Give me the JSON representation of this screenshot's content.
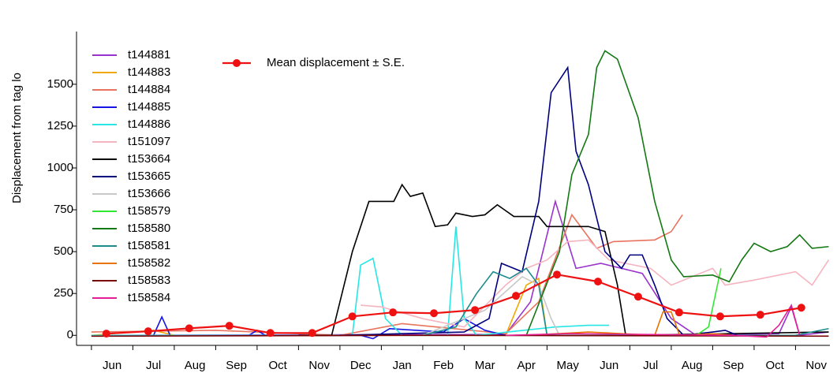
{
  "chart_data": {
    "type": "line",
    "y_label": "Displacement from tag lo",
    "categories": [
      "Jun",
      "Jul",
      "Aug",
      "Sep",
      "Oct",
      "Nov",
      "Dec",
      "Jan",
      "Feb",
      "Mar",
      "Apr",
      "May",
      "Jun",
      "Jul",
      "Aug",
      "Sep",
      "Oct",
      "Nov"
    ],
    "xlim": [
      -0.36,
      17.83
    ],
    "xticks": [
      0,
      1,
      2,
      3,
      4,
      5,
      6,
      7,
      8,
      9,
      10,
      11,
      12,
      13,
      14,
      15,
      16,
      17
    ],
    "ylim": [
      -60,
      1815
    ],
    "yticks": [
      0,
      250,
      500,
      750,
      1000,
      1250,
      1500
    ],
    "series": [
      {
        "name": "t144881",
        "color": "#9a32cd",
        "x": [
          0,
          10,
          10.6,
          11.2,
          11.7,
          12.3,
          13.3,
          14.0,
          14.6,
          16.6,
          16.9,
          17.1,
          17.8
        ],
        "values": [
          0,
          5,
          200,
          800,
          400,
          430,
          370,
          100,
          0,
          10,
          170,
          0,
          20
        ]
      },
      {
        "name": "t144883",
        "color": "#f0a800",
        "x": [
          0,
          1.5,
          2,
          10,
          10.5,
          10.8,
          11.0,
          14
        ],
        "values": [
          0,
          30,
          0,
          0,
          300,
          340,
          0,
          0
        ]
      },
      {
        "name": "t144884",
        "color": "#e9735d",
        "x": [
          0,
          3,
          6,
          7.5,
          10,
          10.8,
          11.6,
          12.2,
          12.6,
          13.6,
          14.0,
          14.27
        ],
        "values": [
          20,
          30,
          0,
          70,
          10,
          200,
          720,
          520,
          560,
          570,
          620,
          720
        ]
      },
      {
        "name": "t144885",
        "color": "#1414e6",
        "x": [
          0,
          1.5,
          1.7,
          1.9,
          3.8,
          4.0,
          4.2,
          6.5,
          6.8,
          7.2,
          8.5,
          9.0,
          9.5,
          10
        ],
        "values": [
          0,
          0,
          110,
          0,
          0,
          30,
          0,
          0,
          -20,
          40,
          20,
          100,
          30,
          0
        ]
      },
      {
        "name": "t144886",
        "color": "#28e6e6",
        "x": [
          0,
          6.3,
          6.5,
          6.8,
          7.1,
          7.5,
          8.6,
          8.8,
          9.0,
          9.3,
          11.2,
          12.0,
          12.5
        ],
        "values": [
          0,
          0,
          420,
          460,
          100,
          0,
          0,
          650,
          100,
          0,
          50,
          60,
          60
        ]
      },
      {
        "name": "t151097",
        "color": "#f5b5c0",
        "x": [
          6.5,
          7.0,
          8,
          9,
          10,
          10.5,
          11,
          11.5,
          12,
          12.5,
          13.5,
          14,
          15,
          15.3,
          16,
          17,
          17.4,
          17.8
        ],
        "values": [
          180,
          170,
          100,
          50,
          300,
          400,
          450,
          560,
          570,
          450,
          400,
          300,
          400,
          300,
          330,
          380,
          300,
          450
        ]
      },
      {
        "name": "t153664",
        "color": "#000000",
        "x": [
          5,
          5.8,
          6.3,
          6.7,
          7.3,
          7.5,
          7.7,
          8.0,
          8.3,
          8.6,
          8.8,
          9.2,
          9.5,
          9.8,
          10.2,
          10.8,
          11.0,
          12.0,
          12.4,
          12.7,
          12.9,
          13,
          17.8
        ],
        "values": [
          0,
          0,
          500,
          800,
          800,
          900,
          830,
          850,
          650,
          660,
          730,
          710,
          720,
          780,
          710,
          710,
          650,
          650,
          620,
          300,
          0,
          0,
          20
        ]
      },
      {
        "name": "t153665",
        "color": "#00007f",
        "x": [
          6,
          9,
          9.6,
          9.9,
          10.4,
          10.8,
          11.1,
          11.5,
          11.7,
          12.0,
          12.4,
          12.8,
          13.0,
          13.3,
          13.6,
          13.9,
          14.3,
          15.0,
          15.3,
          15.6
        ],
        "values": [
          0,
          20,
          100,
          430,
          380,
          800,
          1450,
          1600,
          1100,
          900,
          500,
          400,
          480,
          480,
          300,
          100,
          0,
          20,
          30,
          0
        ]
      },
      {
        "name": "t153666",
        "color": "#c8c8c8",
        "x": [
          8,
          9.5,
          10.4,
          10.8,
          11.1,
          11.3,
          13
        ],
        "values": [
          0,
          150,
          350,
          300,
          100,
          0,
          0
        ]
      },
      {
        "name": "t158579",
        "color": "#32e632",
        "x": [
          12,
          14.6,
          14.9,
          15.2
        ],
        "values": [
          0,
          0,
          50,
          400
        ]
      },
      {
        "name": "t158580",
        "color": "#147814",
        "x": [
          10.5,
          11.3,
          11.6,
          12.0,
          12.2,
          12.4,
          12.7,
          13.2,
          13.6,
          14.0,
          14.3,
          15.0,
          15.4,
          15.7,
          16.0,
          16.4,
          16.8,
          17.1,
          17.4,
          17.8
        ],
        "values": [
          0,
          500,
          960,
          1200,
          1600,
          1700,
          1650,
          1300,
          800,
          450,
          350,
          360,
          320,
          450,
          550,
          500,
          530,
          600,
          520,
          530
        ]
      },
      {
        "name": "t158581",
        "color": "#1e8c8c",
        "x": [
          8,
          8.8,
          9.3,
          9.7,
          10.1,
          10.5,
          10.8,
          11.0,
          12,
          17,
          17.8
        ],
        "values": [
          0,
          50,
          250,
          380,
          340,
          400,
          300,
          0,
          0,
          0,
          40
        ]
      },
      {
        "name": "t158582",
        "color": "#e87300",
        "x": [
          10.5,
          12.0,
          13.6,
          13.8,
          14.0,
          14.2,
          15,
          15.5
        ],
        "values": [
          0,
          20,
          0,
          140,
          140,
          0,
          10,
          0
        ]
      },
      {
        "name": "t158583",
        "color": "#780000",
        "x": [
          0,
          8,
          17.8
        ],
        "values": [
          -5,
          0,
          -5
        ]
      },
      {
        "name": "t158584",
        "color": "#e61e96",
        "x": [
          10,
          11.5,
          15.5,
          16.3,
          16.6,
          16.9,
          17.1
        ],
        "values": [
          0,
          10,
          0,
          -10,
          60,
          180,
          0
        ]
      }
    ],
    "mean": {
      "name": "Mean displacement ± S.E.",
      "color": "#ee1111",
      "x": [
        0.36,
        1.37,
        2.36,
        3.33,
        4.32,
        5.33,
        6.3,
        7.28,
        8.27,
        9.26,
        10.25,
        11.24,
        12.23,
        13.2,
        14.19,
        15.18,
        16.15,
        17.14
      ],
      "values": [
        10,
        24,
        42,
        57,
        14,
        14,
        113,
        137,
        132,
        151,
        236,
        363,
        321,
        231,
        137,
        113,
        123,
        165
      ]
    }
  }
}
